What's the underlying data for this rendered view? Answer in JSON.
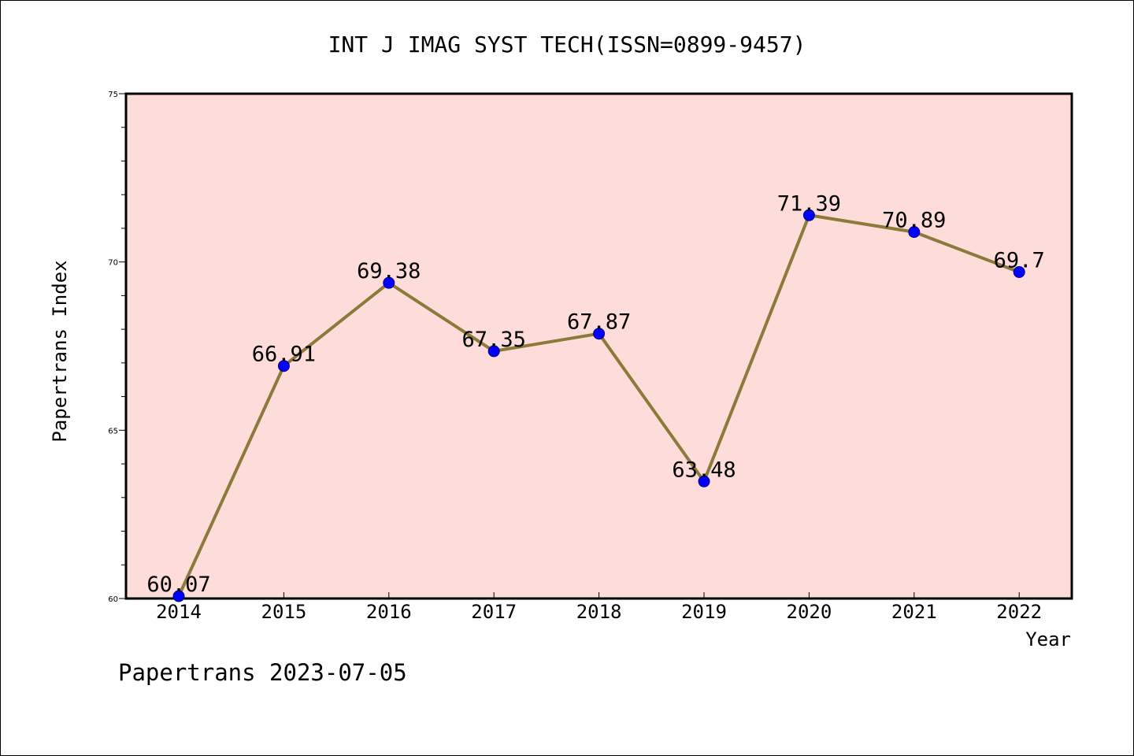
{
  "chart_data": {
    "type": "line",
    "title": "INT J IMAG SYST TECH(ISSN=0899-9457)",
    "xlabel": "Year",
    "ylabel": "Papertrans Index",
    "x": [
      "2014",
      "2015",
      "2016",
      "2017",
      "2018",
      "2019",
      "2020",
      "2021",
      "2022"
    ],
    "series": [
      {
        "values": [
          60.07,
          66.91,
          69.38,
          67.35,
          67.87,
          63.48,
          71.39,
          70.89,
          69.7
        ],
        "labels": [
          "60.07",
          "66.91",
          "69.38",
          "67.35",
          "67.87",
          "63.48",
          "71.39",
          "70.89",
          "69.7"
        ]
      }
    ],
    "ylim": [
      60,
      75
    ],
    "yticks": [
      "60",
      "65",
      "70",
      "75"
    ],
    "grid": false,
    "colors": {
      "plot_background": "#fddcd9",
      "line": "#8b7a3a",
      "marker": "#0000ff",
      "marker_edge": "#000080"
    }
  },
  "footer": {
    "text": "Papertrans 2023-07-05"
  }
}
